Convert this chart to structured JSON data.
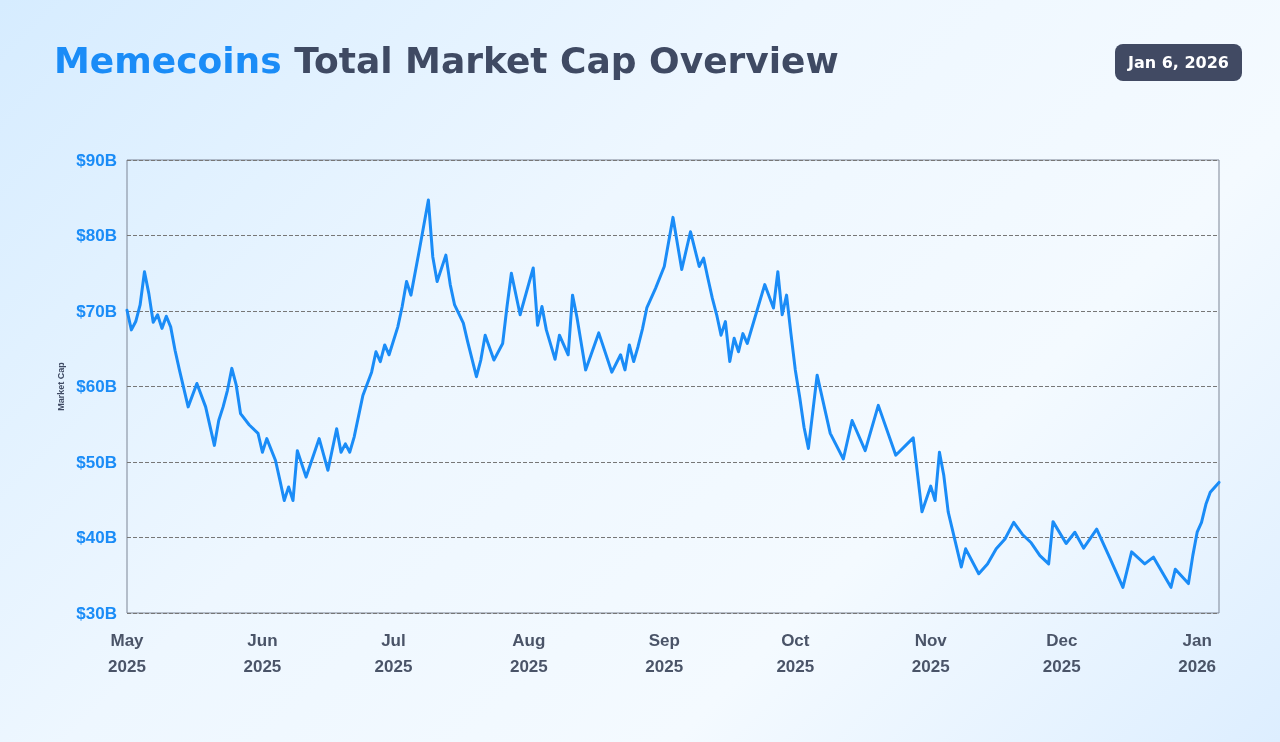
{
  "chart_data": {
    "type": "line",
    "title": "Memecoins Total Market Cap Overview",
    "ylabel": "Market Cap",
    "annotations": [
      "Jan 6, 2026"
    ],
    "x": [
      "2025-05-01",
      "2025-05-02",
      "2025-05-03",
      "2025-05-04",
      "2025-05-05",
      "2025-05-06",
      "2025-05-07",
      "2025-05-08",
      "2025-05-09",
      "2025-05-10",
      "2025-05-11",
      "2025-05-12",
      "2025-05-13",
      "2025-05-15",
      "2025-05-17",
      "2025-05-19",
      "2025-05-21",
      "2025-05-22",
      "2025-05-23",
      "2025-05-24",
      "2025-05-25",
      "2025-05-26",
      "2025-05-27",
      "2025-05-29",
      "2025-05-31",
      "2025-06-01",
      "2025-06-02",
      "2025-06-04",
      "2025-06-05",
      "2025-06-06",
      "2025-06-07",
      "2025-06-08",
      "2025-06-09",
      "2025-06-11",
      "2025-06-14",
      "2025-06-16",
      "2025-06-18",
      "2025-06-19",
      "2025-06-20",
      "2025-06-21",
      "2025-06-22",
      "2025-06-24",
      "2025-06-26",
      "2025-06-27",
      "2025-06-28",
      "2025-06-29",
      "2025-06-30",
      "2025-07-02",
      "2025-07-03",
      "2025-07-04",
      "2025-07-05",
      "2025-07-07",
      "2025-07-09",
      "2025-07-10",
      "2025-07-11",
      "2025-07-13",
      "2025-07-14",
      "2025-07-15",
      "2025-07-17",
      "2025-07-18",
      "2025-07-20",
      "2025-07-21",
      "2025-07-22",
      "2025-07-24",
      "2025-07-26",
      "2025-07-27",
      "2025-07-28",
      "2025-07-30",
      "2025-08-02",
      "2025-08-03",
      "2025-08-04",
      "2025-08-05",
      "2025-08-07",
      "2025-08-08",
      "2025-08-10",
      "2025-08-11",
      "2025-08-12",
      "2025-08-14",
      "2025-08-17",
      "2025-08-20",
      "2025-08-22",
      "2025-08-23",
      "2025-08-24",
      "2025-08-25",
      "2025-08-26",
      "2025-08-27",
      "2025-08-28",
      "2025-08-30",
      "2025-09-01",
      "2025-09-03",
      "2025-09-05",
      "2025-09-07",
      "2025-09-09",
      "2025-09-10",
      "2025-09-11",
      "2025-09-12",
      "2025-09-13",
      "2025-09-14",
      "2025-09-15",
      "2025-09-16",
      "2025-09-17",
      "2025-09-18",
      "2025-09-19",
      "2025-09-20",
      "2025-09-24",
      "2025-09-26",
      "2025-09-27",
      "2025-09-28",
      "2025-09-29",
      "2025-09-30",
      "2025-10-01",
      "2025-10-02",
      "2025-10-03",
      "2025-10-04",
      "2025-10-06",
      "2025-10-09",
      "2025-10-12",
      "2025-10-14",
      "2025-10-17",
      "2025-10-20",
      "2025-10-24",
      "2025-10-28",
      "2025-10-30",
      "2025-11-01",
      "2025-11-02",
      "2025-11-03",
      "2025-11-04",
      "2025-11-05",
      "2025-11-08",
      "2025-11-09",
      "2025-11-12",
      "2025-11-14",
      "2025-11-16",
      "2025-11-18",
      "2025-11-20",
      "2025-11-22",
      "2025-11-24",
      "2025-11-26",
      "2025-11-28",
      "2025-11-29",
      "2025-12-02",
      "2025-12-04",
      "2025-12-06",
      "2025-12-09",
      "2025-12-12",
      "2025-12-15",
      "2025-12-17",
      "2025-12-20",
      "2025-12-22",
      "2025-12-26",
      "2025-12-27",
      "2025-12-30",
      "2025-12-31",
      "2026-01-01",
      "2026-01-02",
      "2026-01-03",
      "2026-01-04",
      "2026-01-06"
    ],
    "series": [
      {
        "color": "#1a8cf7",
        "values": [
          70.1,
          67.5,
          68.6,
          70.8,
          75.2,
          72.3,
          68.5,
          69.5,
          67.7,
          69.3,
          67.9,
          64.8,
          62.2,
          57.3,
          60.4,
          57.3,
          52.2,
          55.5,
          57.3,
          59.5,
          62.4,
          60.2,
          56.4,
          54.9,
          53.8,
          51.3,
          53.1,
          50.2,
          47.6,
          44.9,
          46.7,
          44.9,
          51.5,
          48.0,
          53.1,
          48.9,
          54.4,
          51.3,
          52.4,
          51.3,
          53.3,
          58.8,
          61.9,
          64.6,
          63.3,
          65.5,
          64.2,
          67.9,
          70.6,
          73.9,
          72.1,
          78.3,
          84.7,
          77.2,
          73.9,
          77.4,
          73.5,
          70.8,
          68.4,
          65.9,
          61.3,
          63.5,
          66.8,
          63.5,
          65.7,
          70.6,
          75.0,
          69.5,
          75.7,
          68.1,
          70.6,
          67.5,
          63.6,
          66.8,
          64.2,
          72.1,
          69.2,
          62.2,
          67.1,
          61.9,
          64.2,
          62.2,
          65.5,
          63.3,
          65.3,
          67.6,
          70.4,
          73.0,
          75.9,
          82.4,
          75.5,
          80.5,
          75.9,
          77.0,
          74.3,
          71.7,
          69.5,
          66.8,
          68.6,
          63.3,
          66.4,
          64.6,
          67.0,
          65.7,
          73.5,
          70.4,
          75.2,
          69.5,
          72.1,
          67.0,
          62.2,
          58.6,
          54.6,
          51.8,
          61.5,
          53.8,
          50.4,
          55.5,
          51.5,
          57.5,
          50.9,
          53.2,
          43.4,
          46.8,
          44.9,
          51.3,
          48.2,
          43.4,
          36.1,
          38.5,
          35.2,
          36.5,
          38.5,
          39.8,
          42.0,
          40.4,
          39.3,
          37.6,
          36.5,
          42.1,
          39.2,
          40.7,
          38.6,
          41.1,
          37.3,
          33.4,
          38.1,
          36.5,
          37.4,
          33.4,
          35.8,
          33.9,
          37.6,
          40.7,
          42.0,
          44.4,
          46.0,
          47.3
        ]
      }
    ],
    "xlim": [
      "2025-05-01",
      "2026-01-06"
    ],
    "xticks": [
      {
        "value": "2025-05-01",
        "label": "May\n2025"
      },
      {
        "value": "2025-06-01",
        "label": "Jun\n2025"
      },
      {
        "value": "2025-07-01",
        "label": "Jul\n2025"
      },
      {
        "value": "2025-08-01",
        "label": "Aug\n2025"
      },
      {
        "value": "2025-09-01",
        "label": "Sep\n2025"
      },
      {
        "value": "2025-10-01",
        "label": "Oct\n2025"
      },
      {
        "value": "2025-11-01",
        "label": "Nov\n2025"
      },
      {
        "value": "2025-12-01",
        "label": "Dec\n2025"
      },
      {
        "value": "2026-01-01",
        "label": "Jan\n2026"
      }
    ],
    "ylim": [
      30,
      90
    ],
    "yticks": [
      {
        "value": 30,
        "label": "$30B"
      },
      {
        "value": 40,
        "label": "$40B"
      },
      {
        "value": 50,
        "label": "$50B"
      },
      {
        "value": 60,
        "label": "$60B"
      },
      {
        "value": 70,
        "label": "$70B"
      },
      {
        "value": 80,
        "label": "$80B"
      },
      {
        "value": 90,
        "label": "$90B"
      }
    ],
    "grid": "y",
    "line_style": "solid",
    "marker": "none"
  }
}
